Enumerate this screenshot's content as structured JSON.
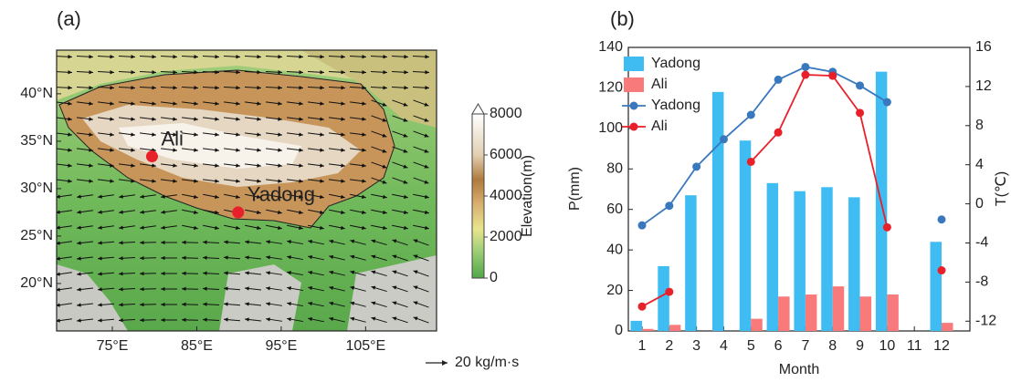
{
  "map": {
    "panel_label": "(a)",
    "xlim": [
      68.4,
      113.4
    ],
    "ylim": [
      15,
      44.6
    ],
    "xticks": [
      {
        "value": 75,
        "label": "75°E"
      },
      {
        "value": 85,
        "label": "85°E"
      },
      {
        "value": 95,
        "label": "95°E"
      },
      {
        "value": 105,
        "label": "105°E"
      }
    ],
    "yticks": [
      {
        "value": 20,
        "label": "20°N"
      },
      {
        "value": 25,
        "label": "25°N"
      },
      {
        "value": 30,
        "label": "30°N"
      },
      {
        "value": 35,
        "label": "35°N"
      },
      {
        "value": 40,
        "label": "40°N"
      }
    ],
    "sites": [
      {
        "name": "Ali",
        "lon": 79.7,
        "lat": 33.4,
        "color": "#e8202a"
      },
      {
        "name": "Yadong",
        "lon": 89.9,
        "lat": 27.5,
        "color": "#e8202a"
      }
    ],
    "colorbar": {
      "label": "Elevation(m)",
      "lim": [
        0,
        8000
      ],
      "ticks": [
        0,
        2000,
        4000,
        6000,
        8000
      ]
    },
    "vector_key": "20 kg/m·s"
  },
  "chart_data": {
    "type": "combo",
    "panel_label": "(b)",
    "x_label": "Month",
    "y_label": "P(mm)",
    "y2_label": "T(℃)",
    "categories": [
      "1",
      "2",
      "3",
      "4",
      "5",
      "6",
      "7",
      "8",
      "9",
      "10",
      "11",
      "12"
    ],
    "ylim": [
      0,
      140
    ],
    "yticks": [
      0,
      20,
      40,
      60,
      80,
      100,
      120,
      140
    ],
    "y2lim": [
      -13,
      16
    ],
    "y2ticks": [
      -12,
      -8,
      -4,
      0,
      4,
      8,
      12,
      16
    ],
    "legend": "upper left",
    "series": [
      {
        "name": "Yadong",
        "type": "bar",
        "color": "#3fbdf3",
        "values": [
          5,
          32,
          67,
          118,
          94,
          73,
          69,
          71,
          66,
          128,
          null,
          44
        ]
      },
      {
        "name": "Ali",
        "type": "bar",
        "color": "#f87a7a",
        "values": [
          1,
          3,
          null,
          null,
          6,
          17,
          18,
          22,
          17,
          18,
          null,
          4
        ]
      },
      {
        "name": "Yadong",
        "type": "line",
        "axis": "y2",
        "color": "#3a78bd",
        "values": [
          -2.2,
          -0.2,
          3.8,
          6.6,
          9.1,
          12.7,
          14.0,
          13.5,
          12.1,
          10.4,
          null,
          -1.6
        ]
      },
      {
        "name": "Ali",
        "type": "line",
        "axis": "y2",
        "color": "#e8202a",
        "values": [
          -10.5,
          -9.0,
          null,
          null,
          4.3,
          7.3,
          13.2,
          13.1,
          9.3,
          -2.4,
          null,
          -6.8
        ]
      }
    ]
  }
}
